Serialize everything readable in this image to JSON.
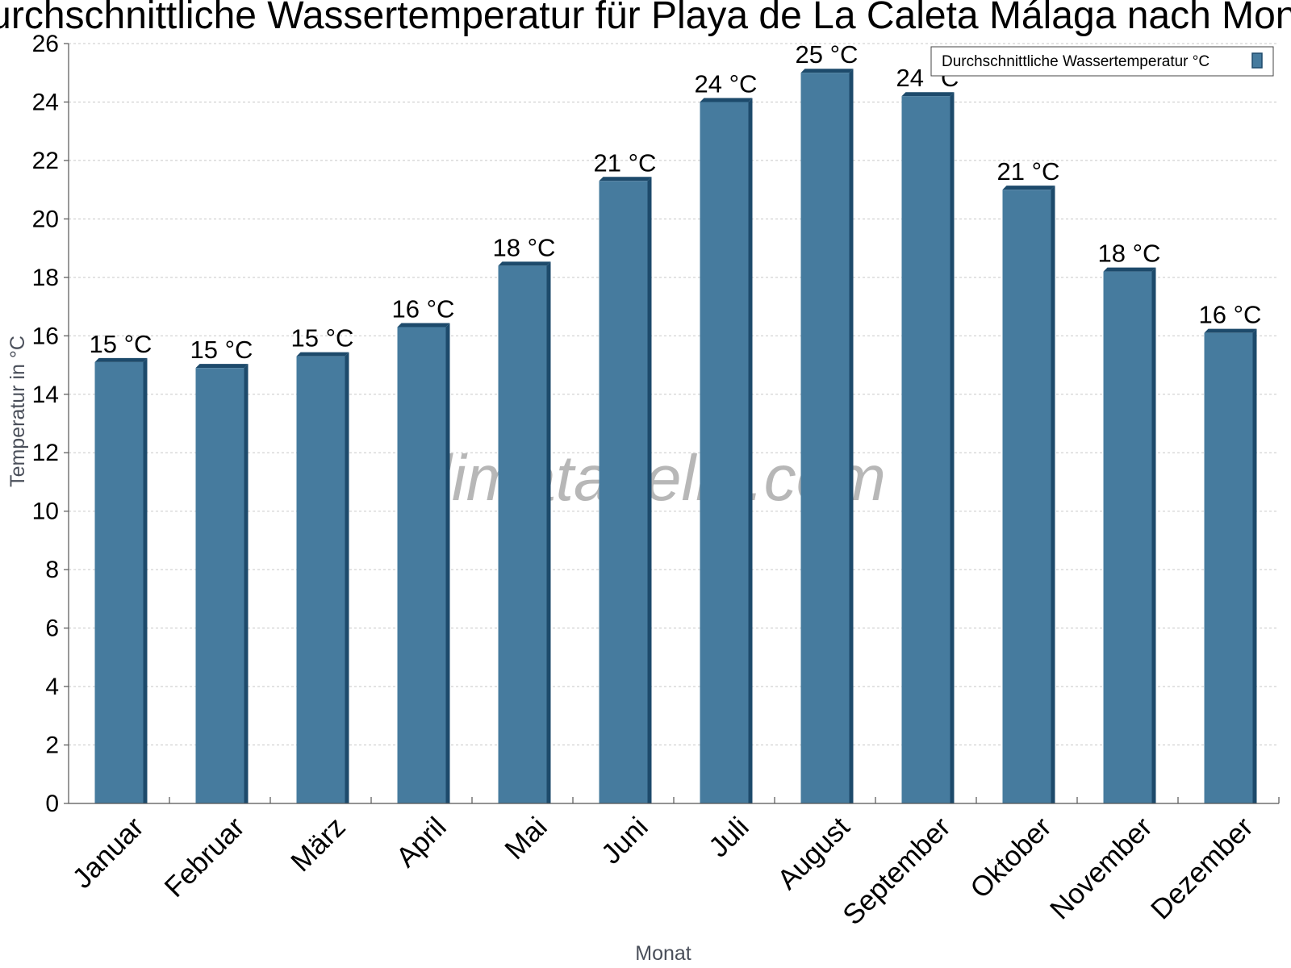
{
  "chart_data": {
    "type": "bar",
    "title": "Durchschnittliche Wassertemperatur für Playa de La Caleta Málaga nach Monat",
    "xlabel": "Monat",
    "ylabel": "Temperatur in °C",
    "ylim": [
      0,
      26
    ],
    "yticks": [
      0,
      2,
      4,
      6,
      8,
      10,
      12,
      14,
      16,
      18,
      20,
      22,
      24,
      26
    ],
    "grid": true,
    "legend_position": "top-right",
    "categories": [
      "Januar",
      "Februar",
      "März",
      "April",
      "Mai",
      "Juni",
      "Juli",
      "August",
      "September",
      "Oktober",
      "November",
      "Dezember"
    ],
    "series": [
      {
        "name": "Durchschnittliche Wassertemperatur °C",
        "color": "#467b9e",
        "edge_color": "#1d4a6b",
        "values": [
          15.1,
          14.9,
          15.3,
          16.3,
          18.4,
          21.3,
          24.0,
          25.0,
          24.2,
          21.0,
          18.2,
          16.1
        ],
        "labels": [
          "15 °C",
          "15 °C",
          "15 °C",
          "16 °C",
          "18 °C",
          "21 °C",
          "24 °C",
          "25 °C",
          "24 °C",
          "21 °C",
          "18 °C",
          "16 °C"
        ]
      }
    ],
    "watermark": "klimatabelle.com"
  }
}
